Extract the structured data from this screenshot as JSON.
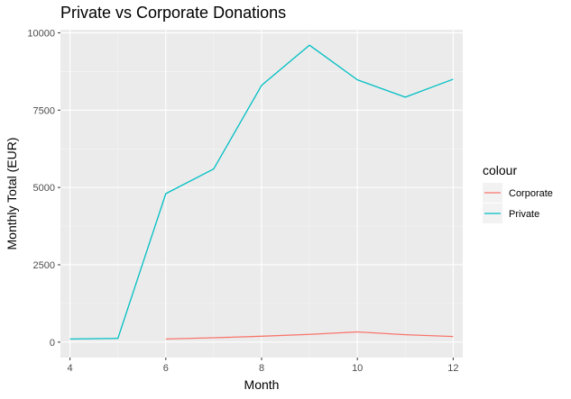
{
  "chart_data": {
    "type": "line",
    "title": "Private vs Corporate Donations",
    "xlabel": "Month",
    "ylabel": "Monthly Total (EUR)",
    "xlim": [
      3.8,
      12.2
    ],
    "ylim": [
      -500,
      10100
    ],
    "x_ticks": [
      4,
      6,
      8,
      10,
      12
    ],
    "x_tick_labels": [
      "4",
      "6",
      "8",
      "10",
      "12"
    ],
    "x_minor_ticks": [
      5,
      7,
      9,
      11
    ],
    "y_ticks": [
      0,
      2500,
      5000,
      7500,
      10000
    ],
    "y_tick_labels": [
      "0",
      "2500",
      "5000",
      "7500",
      "10000"
    ],
    "y_minor_ticks": [
      1250,
      3750,
      6250,
      8750
    ],
    "grid": true,
    "legend": {
      "title": "colour",
      "position": "right"
    },
    "series": [
      {
        "name": "Corporate",
        "color": "#F8766D",
        "x": [
          6,
          7,
          8,
          9,
          10,
          11,
          12
        ],
        "y": [
          100,
          140,
          190,
          250,
          330,
          240,
          180
        ]
      },
      {
        "name": "Private",
        "color": "#00BFC4",
        "x": [
          4,
          5,
          6,
          7,
          8,
          9,
          10,
          11,
          12
        ],
        "y": [
          100,
          120,
          4800,
          5600,
          8300,
          9600,
          8480,
          7920,
          8500
        ]
      }
    ]
  }
}
